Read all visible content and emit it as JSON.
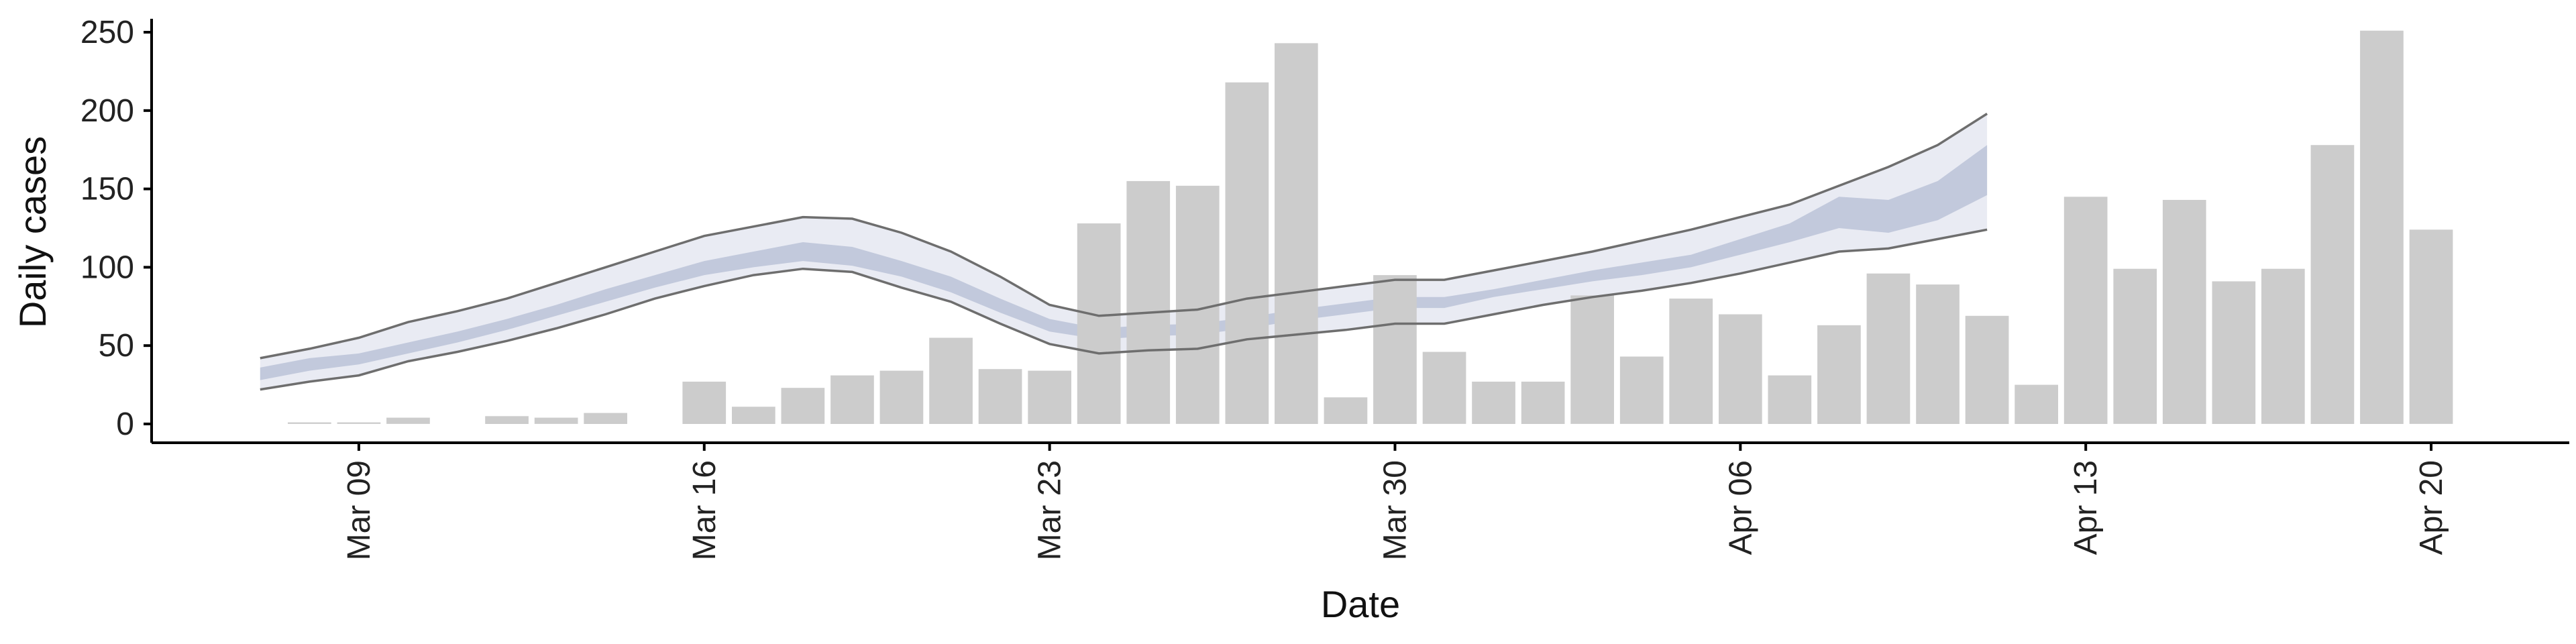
{
  "chart_data": {
    "type": "bar",
    "title": "",
    "xlabel": "Date",
    "ylabel": "Daily cases",
    "ylim": [
      -12,
      262
    ],
    "y_ticks": [
      0,
      50,
      100,
      150,
      200,
      250
    ],
    "x_ticks": [
      {
        "label": "Mar 09",
        "day": 9
      },
      {
        "label": "Mar 16",
        "day": 16
      },
      {
        "label": "Mar 23",
        "day": 23
      },
      {
        "label": "Mar 30",
        "day": 30
      },
      {
        "label": "Apr 06",
        "day": 37
      },
      {
        "label": "Apr 13",
        "day": 44
      },
      {
        "label": "Apr 20",
        "day": 51
      }
    ],
    "x_range_day": [
      4.8,
      53.8
    ],
    "colors": {
      "bars": "#cccccc",
      "outer_band": "#e9ebf3",
      "inner_band": "#c2c9dc",
      "band_lines": "#6e6e6e",
      "axis": "#000000"
    },
    "bars": [
      {
        "date": "Mar 08",
        "day": 8,
        "value": 1
      },
      {
        "date": "Mar 09",
        "day": 9,
        "value": 1
      },
      {
        "date": "Mar 10",
        "day": 10,
        "value": 4
      },
      {
        "date": "Mar 12",
        "day": 12,
        "value": 5
      },
      {
        "date": "Mar 13",
        "day": 13,
        "value": 4
      },
      {
        "date": "Mar 14",
        "day": 14,
        "value": 7
      },
      {
        "date": "Mar 16",
        "day": 16,
        "value": 27
      },
      {
        "date": "Mar 17",
        "day": 17,
        "value": 11
      },
      {
        "date": "Mar 18",
        "day": 18,
        "value": 23
      },
      {
        "date": "Mar 19",
        "day": 19,
        "value": 31
      },
      {
        "date": "Mar 20",
        "day": 20,
        "value": 34
      },
      {
        "date": "Mar 21",
        "day": 21,
        "value": 55
      },
      {
        "date": "Mar 22",
        "day": 22,
        "value": 35
      },
      {
        "date": "Mar 23",
        "day": 23,
        "value": 34
      },
      {
        "date": "Mar 24",
        "day": 24,
        "value": 128
      },
      {
        "date": "Mar 25",
        "day": 25,
        "value": 155
      },
      {
        "date": "Mar 26",
        "day": 26,
        "value": 152
      },
      {
        "date": "Mar 27",
        "day": 27,
        "value": 218
      },
      {
        "date": "Mar 28",
        "day": 28,
        "value": 243
      },
      {
        "date": "Mar 29",
        "day": 29,
        "value": 17
      },
      {
        "date": "Mar 30",
        "day": 30,
        "value": 95
      },
      {
        "date": "Mar 31",
        "day": 31,
        "value": 46
      },
      {
        "date": "Apr 01",
        "day": 32,
        "value": 27
      },
      {
        "date": "Apr 02",
        "day": 33,
        "value": 27
      },
      {
        "date": "Apr 03",
        "day": 34,
        "value": 82
      },
      {
        "date": "Apr 04",
        "day": 35,
        "value": 43
      },
      {
        "date": "Apr 05",
        "day": 36,
        "value": 80
      },
      {
        "date": "Apr 06",
        "day": 37,
        "value": 70
      },
      {
        "date": "Apr 07",
        "day": 38,
        "value": 31
      },
      {
        "date": "Apr 08",
        "day": 39,
        "value": 63
      },
      {
        "date": "Apr 09",
        "day": 40,
        "value": 96
      },
      {
        "date": "Apr 10",
        "day": 41,
        "value": 89
      },
      {
        "date": "Apr 11",
        "day": 42,
        "value": 69
      },
      {
        "date": "Apr 12",
        "day": 43,
        "value": 25
      },
      {
        "date": "Apr 13",
        "day": 44,
        "value": 145
      },
      {
        "date": "Apr 14",
        "day": 45,
        "value": 99
      },
      {
        "date": "Apr 15",
        "day": 46,
        "value": 143
      },
      {
        "date": "Apr 16",
        "day": 47,
        "value": 91
      },
      {
        "date": "Apr 17",
        "day": 48,
        "value": 99
      },
      {
        "date": "Apr 18",
        "day": 49,
        "value": 178
      },
      {
        "date": "Apr 19",
        "day": 50,
        "value": 251
      },
      {
        "date": "Apr 20",
        "day": 51,
        "value": 124
      }
    ],
    "band": {
      "day": [
        7,
        8,
        9,
        10,
        11,
        12,
        13,
        14,
        15,
        16,
        17,
        18,
        19,
        20,
        21,
        22,
        23,
        24,
        25,
        26,
        27,
        28,
        29,
        30,
        31,
        32,
        33,
        34,
        35,
        36,
        37,
        38,
        39,
        40,
        41,
        42
      ],
      "outer_lower": [
        22,
        27,
        31,
        40,
        46,
        53,
        61,
        70,
        80,
        88,
        95,
        99,
        97,
        87,
        78,
        64,
        51,
        45,
        47,
        48,
        54,
        57,
        60,
        64,
        64,
        70,
        76,
        81,
        85,
        90,
        96,
        103,
        110,
        112,
        118,
        124
      ],
      "inner_lower": [
        28,
        34,
        38,
        45,
        52,
        60,
        69,
        78,
        87,
        95,
        100,
        104,
        101,
        94,
        84,
        71,
        59,
        54,
        56,
        57,
        61,
        66,
        70,
        74,
        74,
        81,
        86,
        91,
        95,
        100,
        108,
        116,
        125,
        122,
        130,
        146
      ],
      "inner_upper": [
        36,
        42,
        45,
        52,
        59,
        67,
        76,
        86,
        95,
        104,
        110,
        116,
        113,
        104,
        94,
        80,
        67,
        61,
        63,
        64,
        68,
        73,
        77,
        81,
        81,
        86,
        92,
        98,
        103,
        108,
        118,
        128,
        145,
        143,
        155,
        178
      ],
      "outer_upper": [
        42,
        48,
        55,
        65,
        72,
        80,
        90,
        100,
        110,
        120,
        126,
        132,
        131,
        122,
        110,
        94,
        76,
        69,
        71,
        73,
        80,
        84,
        88,
        92,
        92,
        98,
        104,
        110,
        117,
        124,
        132,
        140,
        152,
        164,
        178,
        198
      ]
    }
  }
}
